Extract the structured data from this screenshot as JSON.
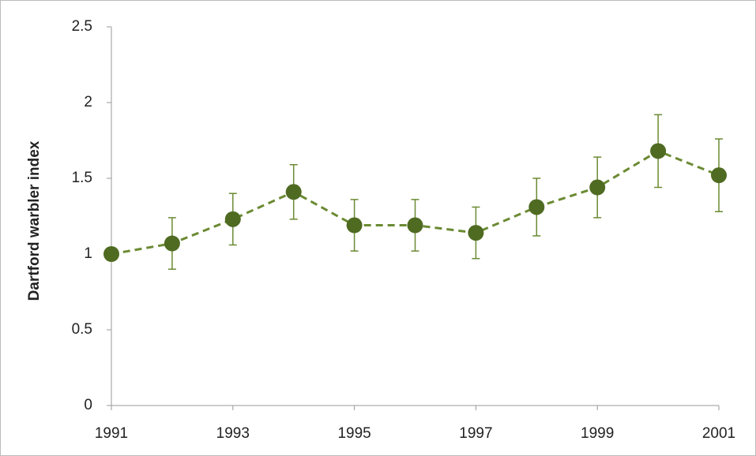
{
  "chart_data": {
    "type": "line",
    "y_label": "Dartford warbler index",
    "x": [
      1991,
      1992,
      1993,
      1994,
      1995,
      1996,
      1997,
      1998,
      1999,
      2000,
      2001
    ],
    "values": [
      1.0,
      1.07,
      1.23,
      1.41,
      1.19,
      1.19,
      1.14,
      1.31,
      1.44,
      1.68,
      1.52
    ],
    "errors": [
      0,
      0.17,
      0.17,
      0.18,
      0.17,
      0.17,
      0.17,
      0.19,
      0.2,
      0.24,
      0.24
    ],
    "color": "#4f6b22",
    "line_style": "dashed",
    "xlim": [
      1991,
      2001
    ],
    "xticks": [
      1991,
      1993,
      1995,
      1997,
      1999,
      2001
    ],
    "ylim": [
      0,
      2.5
    ],
    "yticks": [
      0,
      0.5,
      1,
      1.5,
      2,
      2.5
    ],
    "grid": false
  }
}
